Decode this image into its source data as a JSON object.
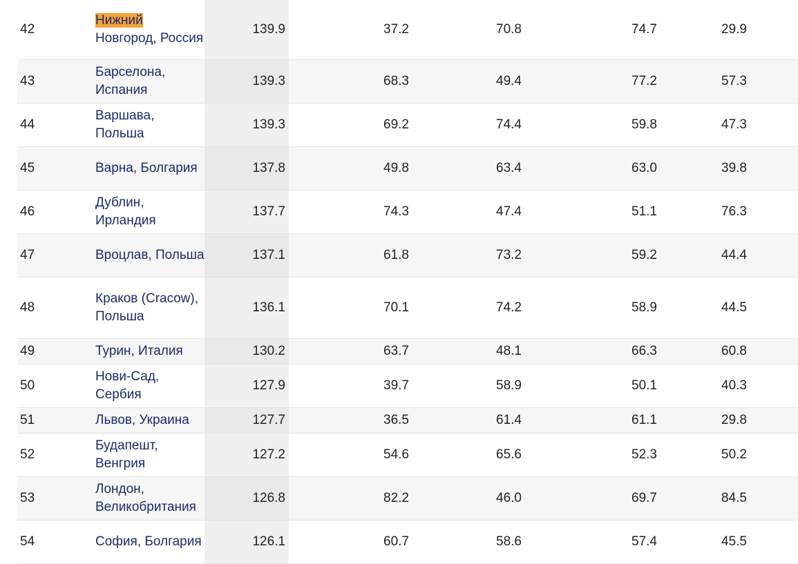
{
  "rows": [
    {
      "rank": "42",
      "city_line1_highlight": "Нижний",
      "city_rest": " Новгород, Россия",
      "index": "139.9",
      "v1": "37.2",
      "v2": "70.8",
      "v3": "74.7",
      "v4": "29.9"
    },
    {
      "rank": "43",
      "city_line1_highlight": "",
      "city_rest": "Барселона, Испания",
      "index": "139.3",
      "v1": "68.3",
      "v2": "49.4",
      "v3": "77.2",
      "v4": "57.3"
    },
    {
      "rank": "44",
      "city_line1_highlight": "",
      "city_rest": "Варшава, Польша",
      "index": "139.3",
      "v1": "69.2",
      "v2": "74.4",
      "v3": "59.8",
      "v4": "47.3"
    },
    {
      "rank": "45",
      "city_line1_highlight": "",
      "city_rest": "Варна, Болгария",
      "index": "137.8",
      "v1": "49.8",
      "v2": "63.4",
      "v3": "63.0",
      "v4": "39.8"
    },
    {
      "rank": "46",
      "city_line1_highlight": "",
      "city_rest": "Дублин, Ирландия",
      "index": "137.7",
      "v1": "74.3",
      "v2": "47.4",
      "v3": "51.1",
      "v4": "76.3"
    },
    {
      "rank": "47",
      "city_line1_highlight": "",
      "city_rest": "Вроцлав, Польша",
      "index": "137.1",
      "v1": "61.8",
      "v2": "73.2",
      "v3": "59.2",
      "v4": "44.4"
    },
    {
      "rank": "48",
      "city_line1_highlight": "",
      "city_rest": "Краков (Cracow), Польша",
      "index": "136.1",
      "v1": "70.1",
      "v2": "74.2",
      "v3": "58.9",
      "v4": "44.5"
    },
    {
      "rank": "49",
      "city_line1_highlight": "",
      "city_rest": "Турин, Италия",
      "index": "130.2",
      "v1": "63.7",
      "v2": "48.1",
      "v3": "66.3",
      "v4": "60.8"
    },
    {
      "rank": "50",
      "city_line1_highlight": "",
      "city_rest": "Нови-Сад, Сербия",
      "index": "127.9",
      "v1": "39.7",
      "v2": "58.9",
      "v3": "50.1",
      "v4": "40.3"
    },
    {
      "rank": "51",
      "city_line1_highlight": "",
      "city_rest": "Львов, Украина",
      "index": "127.7",
      "v1": "36.5",
      "v2": "61.4",
      "v3": "61.1",
      "v4": "29.8"
    },
    {
      "rank": "52",
      "city_line1_highlight": "",
      "city_rest": "Будапешт, Венгрия",
      "index": "127.2",
      "v1": "54.6",
      "v2": "65.6",
      "v3": "52.3",
      "v4": "50.2"
    },
    {
      "rank": "53",
      "city_line1_highlight": "",
      "city_rest": "Лондон, Великобритания",
      "index": "126.8",
      "v1": "82.2",
      "v2": "46.0",
      "v3": "69.7",
      "v4": "84.5"
    },
    {
      "rank": "54",
      "city_line1_highlight": "",
      "city_rest": "София, Болгария",
      "index": "126.1",
      "v1": "60.7",
      "v2": "58.6",
      "v3": "57.4",
      "v4": "45.5"
    }
  ],
  "colors": {
    "link": "#1d2a6b",
    "highlight": "#f5a33a",
    "alt_row": "#f6f6f6",
    "index_column": "#f0f0f0",
    "row_border": "#e3e3e3"
  }
}
